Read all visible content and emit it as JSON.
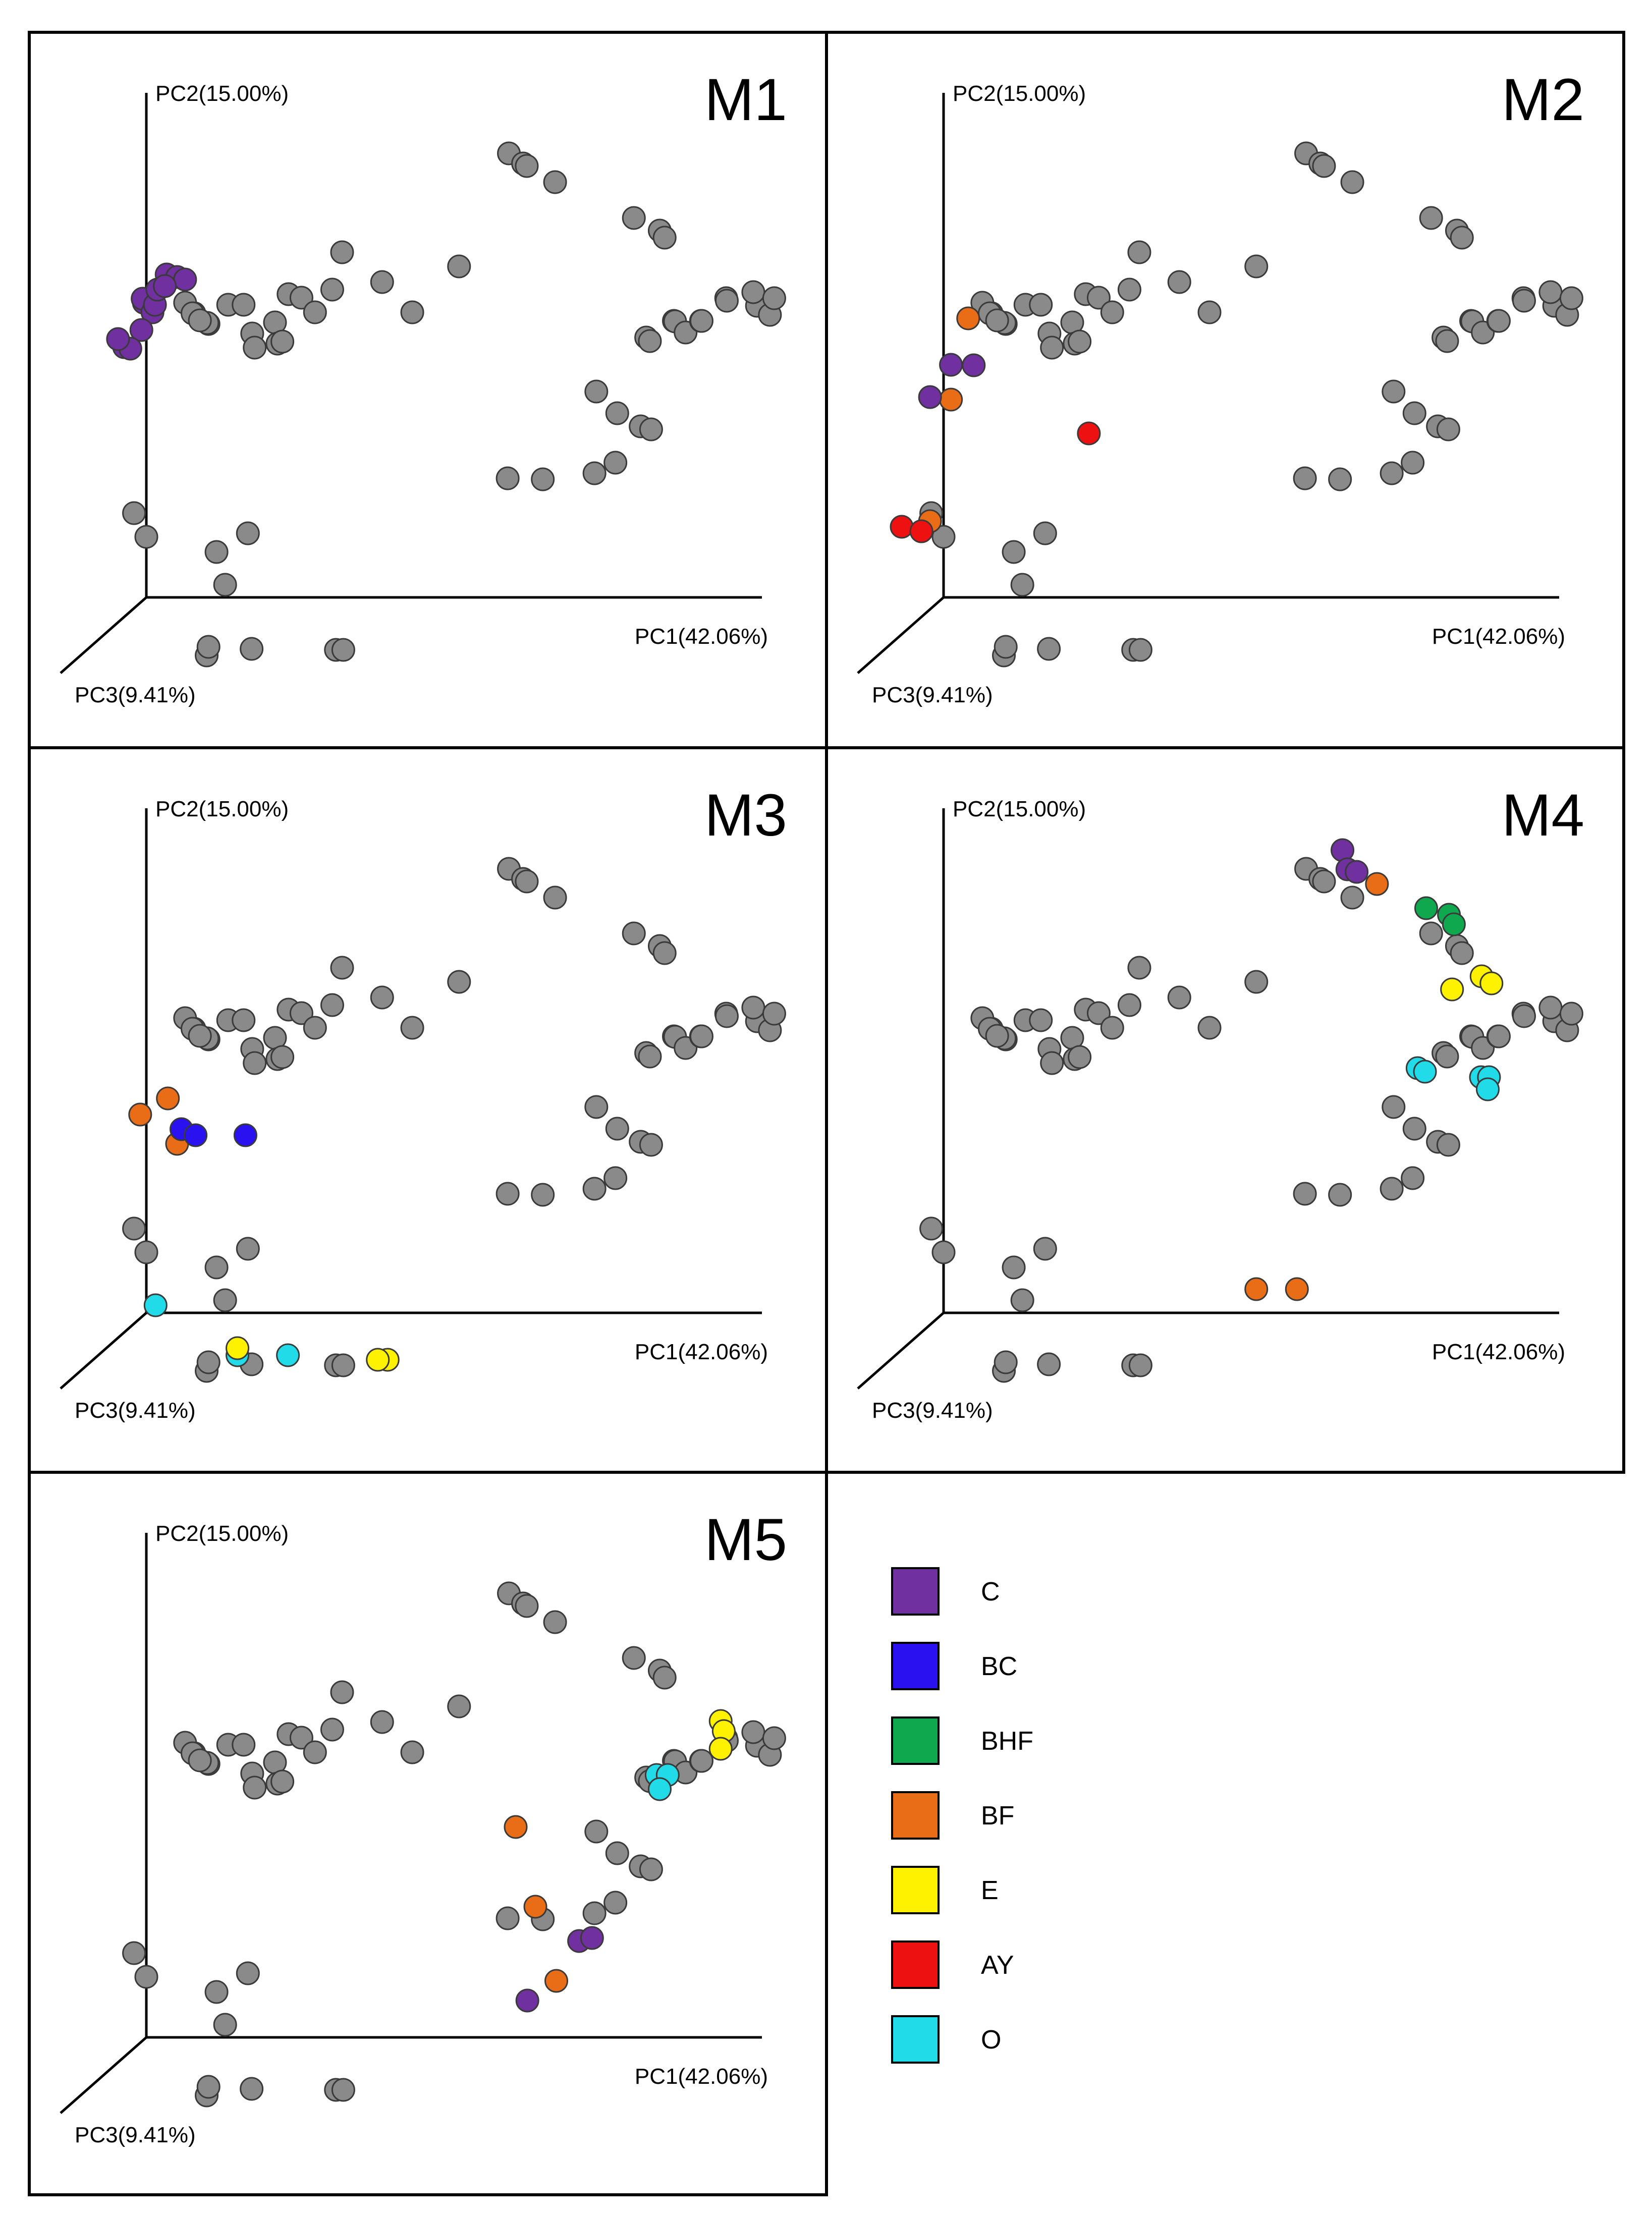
{
  "chart_data": {
    "type": "scatter",
    "projection": "3d-pcoa",
    "axes": {
      "x": "PC1(42.06%)",
      "y": "PC2(15.00%)",
      "z": "PC3(9.41%)"
    },
    "colors": {
      "background": "#8a8a8a",
      "C": "#7030a0",
      "BC": "#2a12f0",
      "BHF": "#0fa84f",
      "BF": "#e96c16",
      "E": "#fff200",
      "AY": "#ee1111",
      "O": "#22dbe8"
    },
    "legend": [
      {
        "key": "C",
        "label": "C"
      },
      {
        "key": "BC",
        "label": "BC"
      },
      {
        "key": "BHF",
        "label": "BHF"
      },
      {
        "key": "BF",
        "label": "BF"
      },
      {
        "key": "E",
        "label": "E"
      },
      {
        "key": "AY",
        "label": "AY"
      },
      {
        "key": "O",
        "label": "O"
      }
    ],
    "base_points": [
      [
        0.589,
        0.88
      ],
      [
        0.612,
        0.86
      ],
      [
        0.618,
        0.855
      ],
      [
        0.664,
        0.823
      ],
      [
        0.792,
        0.752
      ],
      [
        0.834,
        0.727
      ],
      [
        0.842,
        0.713
      ],
      [
        0.078,
        0.563
      ],
      [
        0.063,
        0.584
      ],
      [
        0.075,
        0.563
      ],
      [
        0.101,
        0.542
      ],
      [
        0.099,
        0.544
      ],
      [
        0.087,
        0.549
      ],
      [
        0.133,
        0.58
      ],
      [
        0.158,
        0.58
      ],
      [
        0.172,
        0.523
      ],
      [
        0.176,
        0.495
      ],
      [
        0.209,
        0.545
      ],
      [
        0.213,
        0.503
      ],
      [
        0.221,
        0.507
      ],
      [
        0.231,
        0.601
      ],
      [
        0.252,
        0.594
      ],
      [
        0.274,
        0.565
      ],
      [
        0.302,
        0.61
      ],
      [
        0.318,
        0.684
      ],
      [
        0.383,
        0.625
      ],
      [
        0.432,
        0.565
      ],
      [
        0.508,
        0.656
      ],
      [
        0.812,
        0.515
      ],
      [
        0.818,
        0.508
      ],
      [
        0.857,
        0.548
      ],
      [
        0.859,
        0.547
      ],
      [
        0.876,
        0.525
      ],
      [
        0.901,
        0.548
      ],
      [
        0.902,
        0.548
      ],
      [
        0.942,
        0.593
      ],
      [
        0.943,
        0.588
      ],
      [
        0.992,
        0.578
      ],
      [
        0.986,
        0.605
      ],
      [
        1.013,
        0.56
      ],
      [
        1.02,
        0.593
      ],
      [
        0.731,
        0.408
      ],
      [
        0.765,
        0.365
      ],
      [
        0.803,
        0.339
      ],
      [
        0.82,
        0.333
      ],
      [
        0.762,
        0.267
      ],
      [
        0.728,
        0.246
      ],
      [
        0.644,
        0.234
      ],
      [
        0.587,
        0.236
      ],
      [
        0.165,
        0.127
      ],
      [
        0.114,
        0.09
      ],
      [
        -0.02,
        0.167
      ],
      [
        0.0,
        0.12
      ],
      [
        0.128,
        0.025
      ],
      [
        0.098,
        -0.115
      ],
      [
        0.101,
        -0.098
      ],
      [
        0.171,
        -0.102
      ],
      [
        0.308,
        -0.104
      ],
      [
        0.32,
        -0.104
      ]
    ],
    "panels": [
      {
        "id": "M1",
        "title": "M1",
        "highlights": [
          {
            "group": "C",
            "points": [
              [
                0.033,
                0.64
              ],
              [
                0.05,
                0.635
              ],
              [
                0.063,
                0.63
              ],
              [
                -0.004,
                0.584
              ],
              [
                -0.006,
                0.592
              ],
              [
                0.01,
                0.565
              ],
              [
                0.014,
                0.58
              ],
              [
                -0.036,
                0.496
              ],
              [
                -0.008,
                0.53
              ],
              [
                -0.026,
                0.493
              ],
              [
                0.018,
                0.61
              ],
              [
                0.03,
                0.617
              ],
              [
                -0.046,
                0.512
              ]
            ]
          }
        ]
      },
      {
        "id": "M2",
        "title": "M2",
        "highlights": [
          {
            "group": "BF",
            "points": [
              [
                0.04,
                0.553
              ],
              [
                0.012,
                0.392
              ],
              [
                -0.022,
                0.151
              ]
            ]
          },
          {
            "group": "C",
            "points": [
              [
                0.012,
                0.461
              ],
              [
                0.049,
                0.46
              ],
              [
                -0.022,
                0.397
              ]
            ]
          },
          {
            "group": "AY",
            "points": [
              [
                0.236,
                0.325
              ],
              [
                -0.068,
                0.14
              ],
              [
                -0.036,
                0.131
              ]
            ]
          }
        ]
      },
      {
        "id": "M3",
        "title": "M3",
        "highlights": [
          {
            "group": "BF",
            "points": [
              [
                0.035,
                0.425
              ],
              [
                -0.01,
                0.393
              ],
              [
                0.05,
                0.335
              ]
            ]
          },
          {
            "group": "BC",
            "points": [
              [
                0.057,
                0.364
              ],
              [
                0.08,
                0.352
              ],
              [
                0.161,
                0.352
              ]
            ]
          },
          {
            "group": "O",
            "points": [
              [
                0.015,
                0.015
              ],
              [
                0.148,
                -0.084
              ],
              [
                0.23,
                -0.084
              ]
            ]
          },
          {
            "group": "E",
            "points": [
              [
                0.148,
                -0.07
              ],
              [
                0.392,
                -0.093
              ],
              [
                0.376,
                -0.093
              ]
            ]
          }
        ]
      },
      {
        "id": "M4",
        "title": "M4",
        "highlights": [
          {
            "group": "C",
            "points": [
              [
                0.648,
                0.917
              ],
              [
                0.656,
                0.879
              ],
              [
                0.671,
                0.874
              ]
            ]
          },
          {
            "group": "BF",
            "points": [
              [
                0.704,
                0.85
              ],
              [
                0.508,
                0.047
              ],
              [
                0.574,
                0.047
              ]
            ]
          },
          {
            "group": "BHF",
            "points": [
              [
                0.784,
                0.802
              ],
              [
                0.821,
                0.789
              ],
              [
                0.829,
                0.77
              ]
            ]
          },
          {
            "group": "E",
            "points": [
              [
                0.874,
                0.667
              ],
              [
                0.89,
                0.653
              ],
              [
                0.826,
                0.641
              ]
            ]
          },
          {
            "group": "O",
            "points": [
              [
                0.77,
                0.485
              ],
              [
                0.782,
                0.478
              ],
              [
                0.873,
                0.467
              ],
              [
                0.886,
                0.467
              ],
              [
                0.884,
                0.443
              ]
            ]
          }
        ]
      },
      {
        "id": "M5",
        "title": "M5",
        "highlights": [
          {
            "group": "E",
            "points": [
              [
                0.933,
                0.627
              ],
              [
                0.938,
                0.607
              ],
              [
                0.933,
                0.572
              ]
            ]
          },
          {
            "group": "O",
            "points": [
              [
                0.829,
                0.52
              ],
              [
                0.847,
                0.52
              ],
              [
                0.834,
                0.492
              ]
            ]
          },
          {
            "group": "BF",
            "points": [
              [
                0.6,
                0.417
              ],
              [
                0.632,
                0.259
              ],
              [
                0.666,
                0.112
              ]
            ]
          },
          {
            "group": "C",
            "points": [
              [
                0.703,
                0.191
              ],
              [
                0.724,
                0.197
              ],
              [
                0.619,
                0.073
              ]
            ]
          }
        ]
      }
    ]
  }
}
